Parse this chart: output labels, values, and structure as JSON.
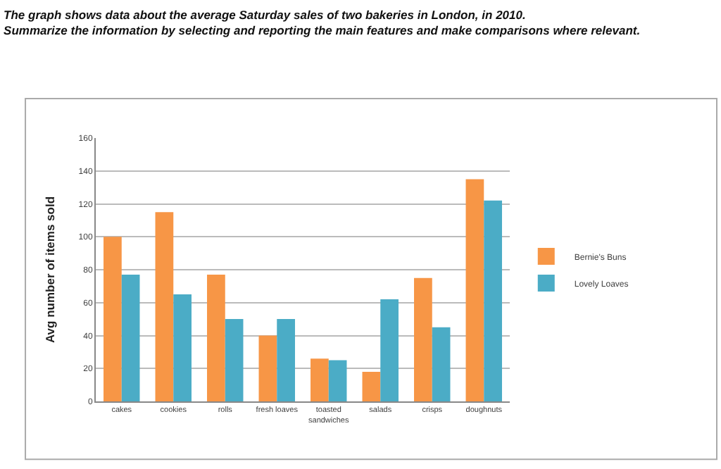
{
  "chart_data": {
    "type": "bar",
    "title": "The graph shows data about the average Saturday sales of two bakeries in London, in 2010.",
    "subtitle": "Summarize the information by selecting and reporting the main features and make comparisons where relevant.",
    "ylabel": "Avg number of items sold",
    "categories": [
      "cakes",
      "cookies",
      "rolls",
      "fresh loaves",
      "toasted sandwiches",
      "salads",
      "crisps",
      "doughnuts"
    ],
    "series": [
      {
        "name": "Bernie's Buns",
        "color": "#f79646",
        "values": [
          100,
          115,
          77,
          40,
          26,
          18,
          75,
          135
        ]
      },
      {
        "name": "Lovely Loaves",
        "color": "#4bacc6",
        "values": [
          77,
          65,
          50,
          50,
          25,
          62,
          45,
          122
        ]
      }
    ],
    "ylim": [
      0,
      160
    ],
    "yticks": [
      0,
      20,
      40,
      60,
      80,
      100,
      120,
      140,
      160
    ],
    "grid": "y",
    "legend": "right"
  }
}
